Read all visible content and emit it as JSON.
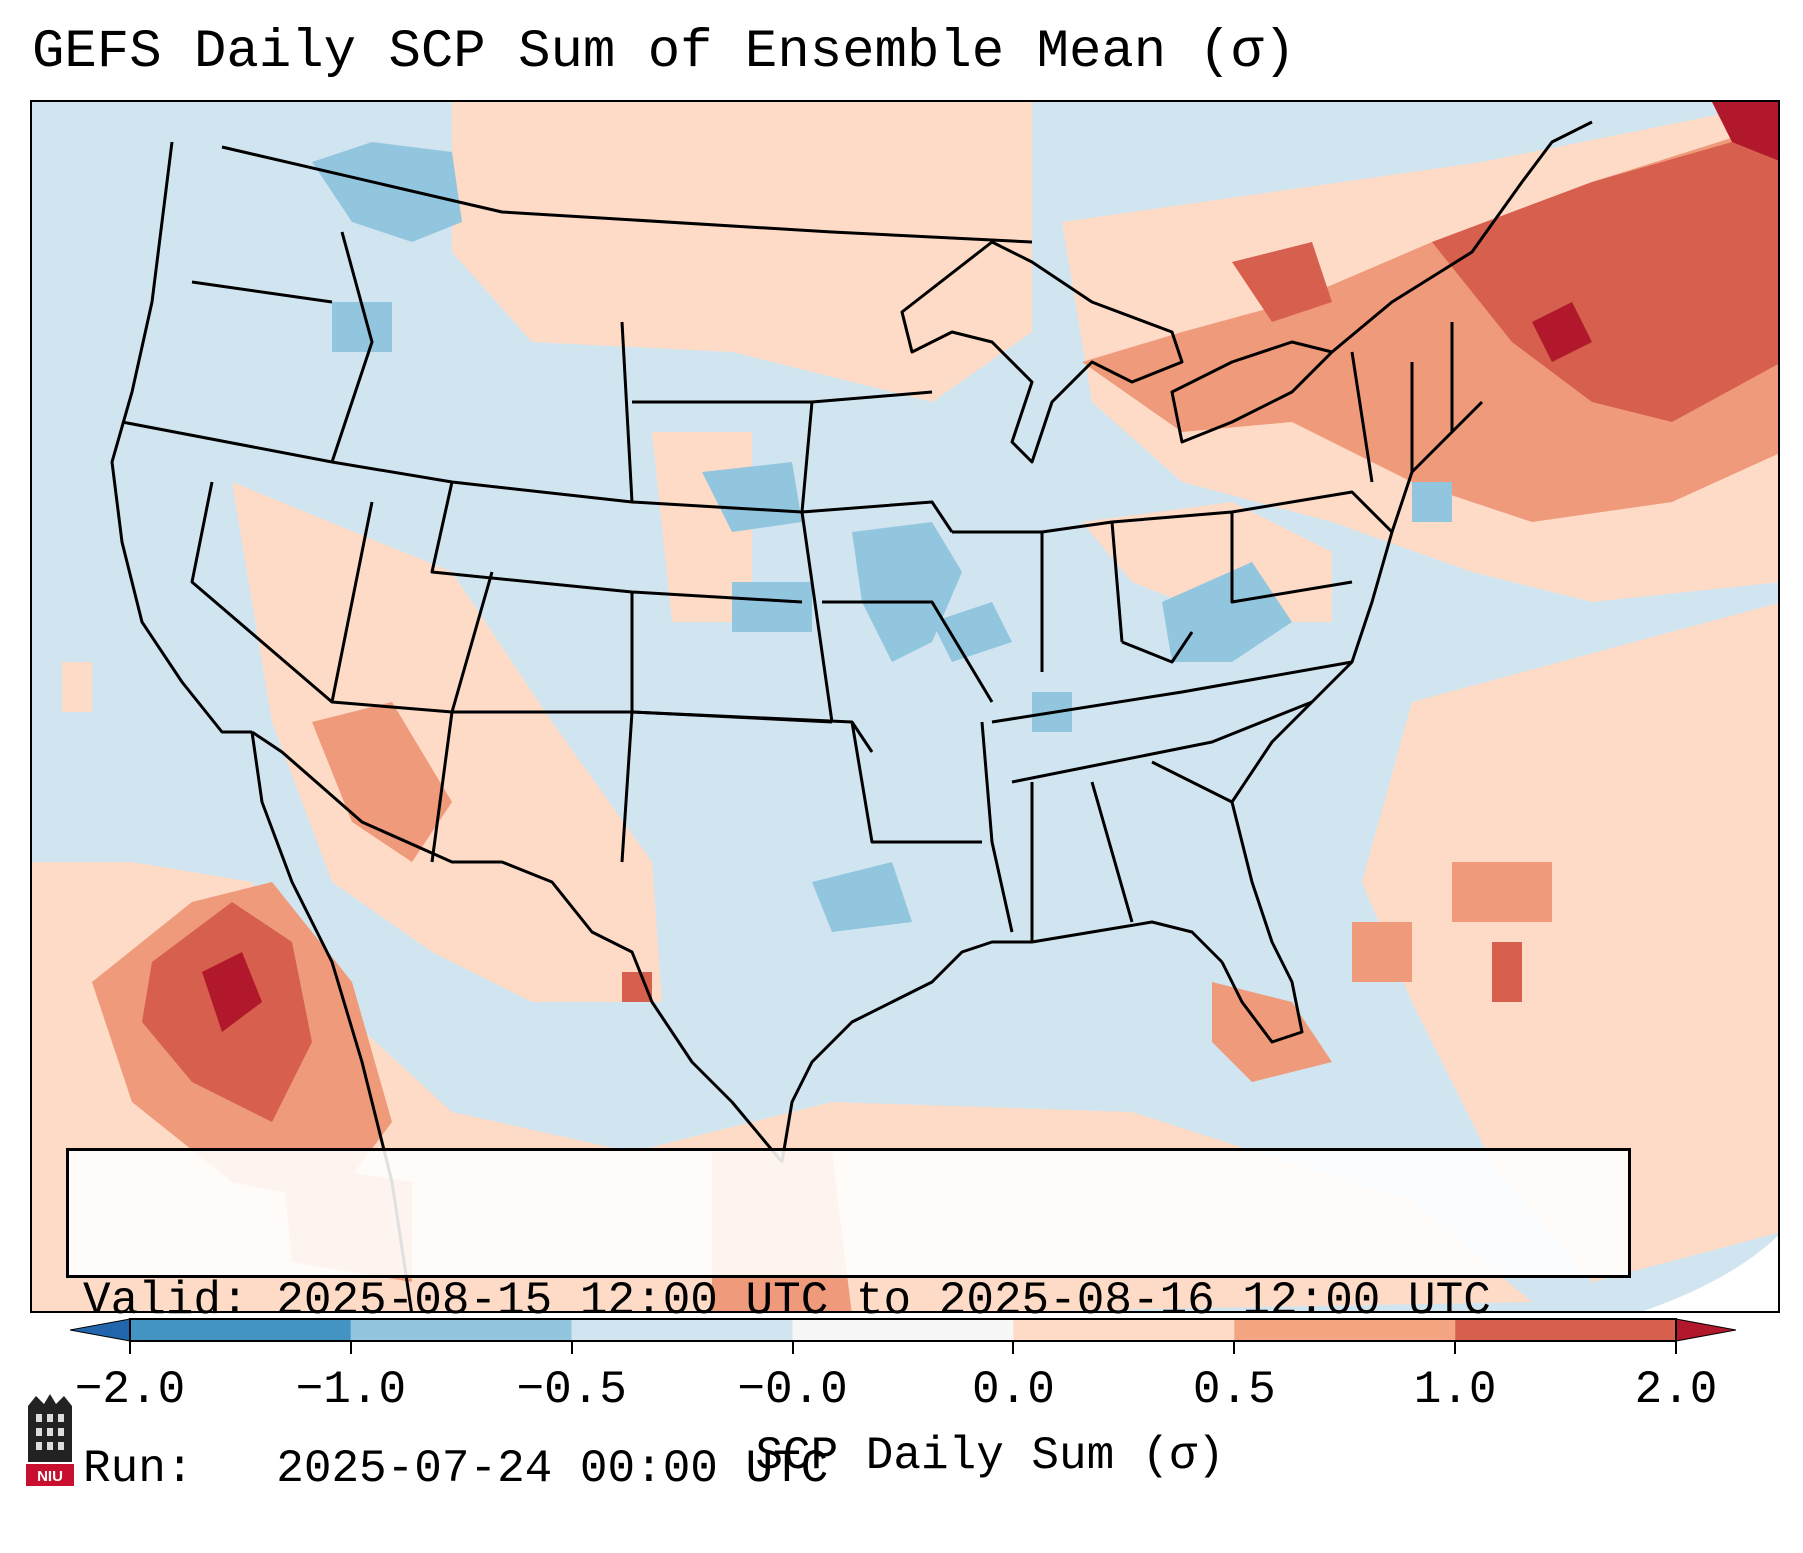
{
  "title": "GEFS Daily SCP Sum of Ensemble Mean (σ)",
  "info": {
    "valid_line": "Valid: 2025-08-15 12:00 UTC to 2025-08-16 12:00 UTC",
    "run_line": "Run:   2025-07-24 00:00 UTC"
  },
  "colorbar": {
    "label": "SCP Daily Sum (σ)",
    "ticks": [
      "−2.0",
      "−1.0",
      "−0.5",
      "−0.0",
      "0.0",
      "0.5",
      "1.0",
      "2.0"
    ],
    "colors": [
      "#3f8fc4",
      "#8ec1de",
      "#d1e5f0",
      "#f7f7f7",
      "#fbd3bd",
      "#f09c7b",
      "#d6604d",
      "#b2182b"
    ]
  },
  "logo": {
    "text": "NIU"
  },
  "colors": {
    "neutral_blue": "#d1e5f0",
    "light_blue": "#92c5de",
    "light_red": "#fddbc7",
    "mid_red": "#ef9a7a",
    "dark_red": "#d6604d",
    "deep_red": "#b2182b",
    "outside": "#ffffff"
  },
  "map_region": "Contiguous United States"
}
